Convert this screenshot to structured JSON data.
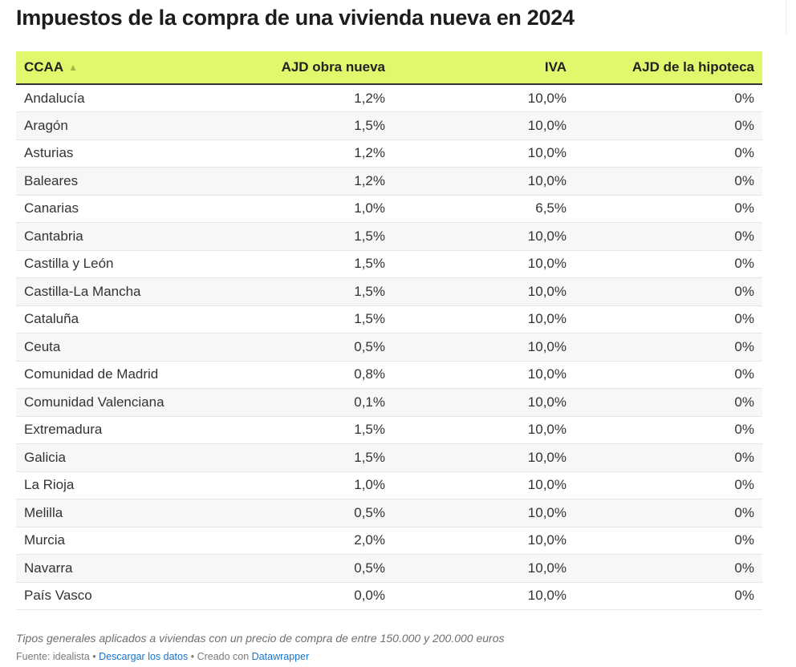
{
  "title": "Impuestos de la compra de una vivienda nueva en 2024",
  "table": {
    "headers": [
      "CCAA",
      "AJD obra nueva",
      "IVA",
      "AJD de la hipoteca"
    ],
    "sort_indicator": "▲",
    "rows": [
      [
        "Andalucía",
        "1,2%",
        "10,0%",
        "0%"
      ],
      [
        "Aragón",
        "1,5%",
        "10,0%",
        "0%"
      ],
      [
        "Asturias",
        "1,2%",
        "10,0%",
        "0%"
      ],
      [
        "Baleares",
        "1,2%",
        "10,0%",
        "0%"
      ],
      [
        "Canarias",
        "1,0%",
        "6,5%",
        "0%"
      ],
      [
        "Cantabria",
        "1,5%",
        "10,0%",
        "0%"
      ],
      [
        "Castilla y León",
        "1,5%",
        "10,0%",
        "0%"
      ],
      [
        "Castilla-La Mancha",
        "1,5%",
        "10,0%",
        "0%"
      ],
      [
        "Cataluña",
        "1,5%",
        "10,0%",
        "0%"
      ],
      [
        "Ceuta",
        "0,5%",
        "10,0%",
        "0%"
      ],
      [
        "Comunidad de Madrid",
        "0,8%",
        "10,0%",
        "0%"
      ],
      [
        "Comunidad Valenciana",
        "0,1%",
        "10,0%",
        "0%"
      ],
      [
        "Extremadura",
        "1,5%",
        "10,0%",
        "0%"
      ],
      [
        "Galicia",
        "1,5%",
        "10,0%",
        "0%"
      ],
      [
        "La Rioja",
        "1,0%",
        "10,0%",
        "0%"
      ],
      [
        "Melilla",
        "0,5%",
        "10,0%",
        "0%"
      ],
      [
        "Murcia",
        "2,0%",
        "10,0%",
        "0%"
      ],
      [
        "Navarra",
        "0,5%",
        "10,0%",
        "0%"
      ],
      [
        "País Vasco",
        "0,0%",
        "10,0%",
        "0%"
      ]
    ]
  },
  "notes": "Tipos generales aplicados a viviendas con un precio de compra de entre 150.000 y 200.000 euros",
  "footer": {
    "source_label": "Fuente: idealista",
    "separator": " • ",
    "download_link": "Descargar los datos",
    "created_label": "Creado con",
    "creator_link": "Datawrapper"
  },
  "colors": {
    "header_bg": "#e2f76b",
    "link": "#1a73c8",
    "stripe": "#f7f7f7"
  }
}
